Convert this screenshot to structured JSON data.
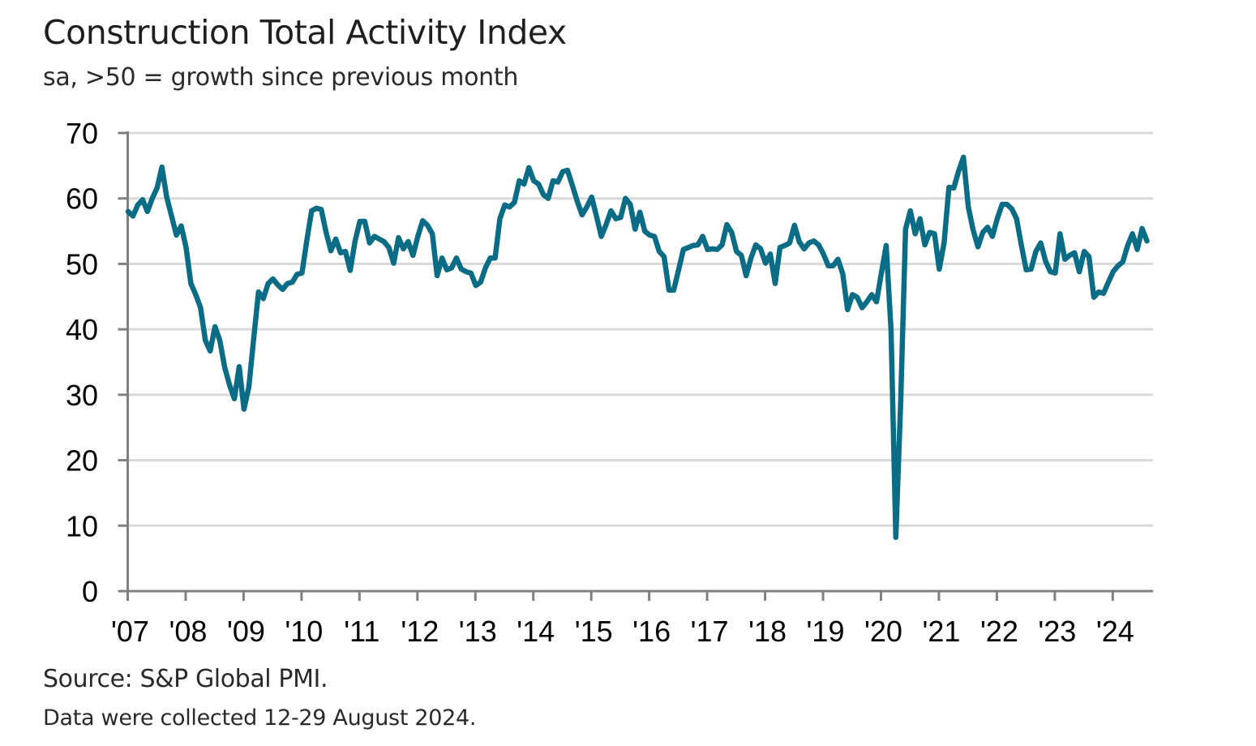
{
  "chart_data": {
    "type": "line",
    "title": "Construction Total Activity Index",
    "subtitle": "sa, >50 = growth since previous month",
    "xlabel": "",
    "ylabel": "",
    "ylim": [
      0,
      70
    ],
    "yticks": [
      0,
      10,
      20,
      30,
      40,
      50,
      60,
      70
    ],
    "xticks": [
      "'07",
      "'08",
      "'09",
      "'10",
      "'11",
      "'12",
      "'13",
      "'14",
      "'15",
      "'16",
      "'17",
      "'18",
      "'19",
      "'20",
      "'21",
      "'22",
      "'23",
      "'24"
    ],
    "x_start": "2007-01",
    "x_end": "2024-08",
    "frequency": "monthly",
    "grid": true,
    "legend": "none",
    "line_color": "#0B6C85",
    "grid_color": "#D9D9D9",
    "axis_color": "#808080",
    "series": [
      {
        "name": "Construction Total Activity Index",
        "values": [
          58.0,
          57.3,
          59.0,
          59.8,
          58.0,
          60.0,
          61.6,
          64.8,
          60.2,
          57.3,
          54.4,
          55.8,
          52.5,
          47.0,
          45.3,
          43.3,
          38.3,
          36.7,
          40.4,
          38.3,
          34.2,
          31.5,
          29.4,
          34.3,
          27.8,
          31.2,
          38.5,
          45.7,
          44.7,
          47.0,
          47.7,
          46.8,
          46.1,
          47.0,
          47.2,
          48.4,
          48.6,
          53.5,
          58.1,
          58.5,
          58.3,
          54.8,
          52.0,
          53.8,
          51.7,
          51.9,
          49.0,
          53.5,
          56.5,
          56.5,
          53.2,
          54.2,
          53.8,
          53.4,
          52.5,
          50.1,
          54.0,
          52.3,
          53.4,
          51.3,
          54.2,
          56.6,
          55.9,
          54.6,
          48.2,
          50.9,
          49.1,
          49.4,
          50.9,
          49.2,
          48.8,
          48.6,
          46.7,
          47.2,
          49.4,
          50.9,
          50.9,
          56.9,
          59.0,
          58.7,
          59.4,
          62.7,
          62.2,
          64.7,
          62.7,
          62.2,
          60.6,
          60.0,
          62.7,
          62.5,
          64.1,
          64.3,
          62.0,
          59.6,
          57.5,
          58.7,
          60.2,
          57.3,
          54.2,
          56.0,
          58.1,
          56.9,
          57.1,
          60.0,
          59.1,
          55.3,
          57.9,
          55.0,
          54.4,
          54.2,
          51.9,
          51.1,
          46.0,
          46.0,
          49.1,
          52.2,
          52.5,
          52.8,
          52.9,
          54.2,
          52.2,
          52.3,
          52.2,
          52.9,
          56.0,
          54.8,
          51.9,
          51.3,
          48.2,
          50.9,
          52.9,
          52.3,
          50.1,
          51.5,
          47.0,
          52.5,
          52.8,
          53.2,
          55.9,
          53.4,
          52.3,
          53.2,
          53.5,
          52.9,
          51.5,
          49.7,
          49.7,
          50.7,
          48.5,
          43.0,
          45.3,
          44.9,
          43.3,
          44.2,
          45.3,
          44.2,
          48.6,
          52.8,
          39.9,
          8.2,
          28.9,
          55.3,
          58.1,
          54.6,
          56.9,
          52.9,
          54.8,
          54.6,
          49.2,
          53.3,
          61.7,
          61.6,
          64.2,
          66.3,
          58.7,
          55.2,
          52.6,
          54.8,
          55.6,
          54.2,
          56.9,
          59.1,
          59.1,
          58.4,
          56.9,
          52.8,
          49.1,
          49.2,
          51.9,
          53.2,
          50.4,
          48.8,
          48.6,
          54.6,
          50.7,
          51.3,
          51.7,
          48.8,
          51.9,
          51.1,
          44.9,
          45.7,
          45.5,
          47.2,
          48.8,
          49.7,
          50.3,
          52.8,
          54.6,
          52.2,
          55.4,
          53.5
        ]
      }
    ]
  },
  "footer": {
    "source": "Source: S&P Global PMI.",
    "note": "Data were collected 12-29 August 2024."
  }
}
